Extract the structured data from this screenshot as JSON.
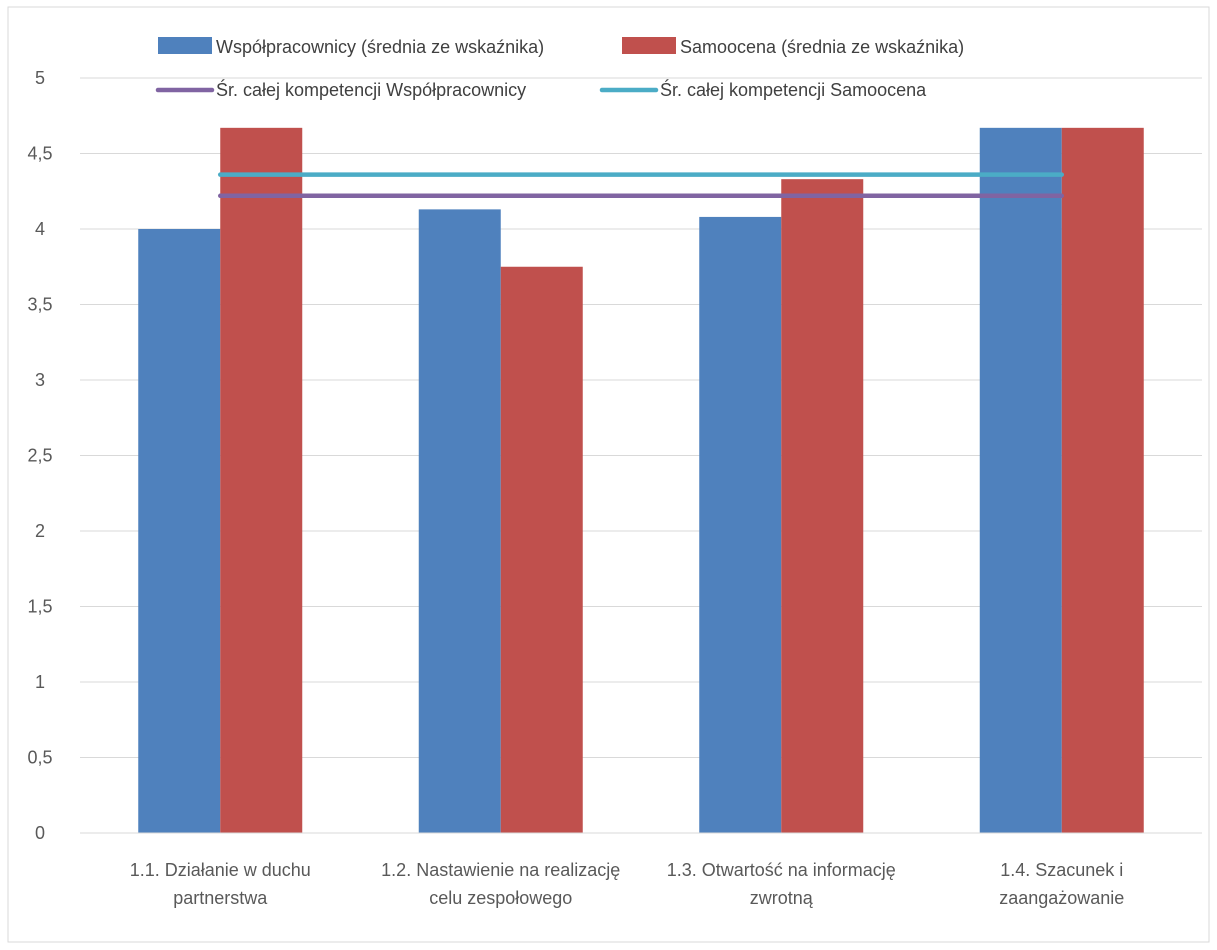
{
  "chart_data": {
    "type": "bar",
    "categories": [
      [
        "1.1. Działanie w duchu",
        "partnerstwa"
      ],
      [
        "1.2. Nastawienie na realizację",
        "celu zespołowego"
      ],
      [
        "1.3. Otwartość na informację",
        "zwrotną"
      ],
      [
        "1.4. Szacunek i",
        "zaangażowanie"
      ]
    ],
    "series": [
      {
        "name": "Współpracownicy (średnia ze wskaźnika)",
        "values": [
          4.0,
          4.13,
          4.08,
          4.67
        ],
        "color": "#4f81bd"
      },
      {
        "name": "Samoocena (średnia ze wskaźnika)",
        "values": [
          4.67,
          3.75,
          4.33,
          4.67
        ],
        "color": "#c0504d"
      }
    ],
    "reference_lines": [
      {
        "name": "Śr. całej kompetencji Współpracownicy",
        "value": 4.22,
        "color": "#8064a2"
      },
      {
        "name": "Śr. całej kompetencji Samoocena",
        "value": 4.36,
        "color": "#4bacc6"
      }
    ],
    "ylim": [
      0,
      5
    ],
    "yticks": [
      "0",
      "0,5",
      "1",
      "1,5",
      "2",
      "2,5",
      "3",
      "3,5",
      "4",
      "4,5",
      "5"
    ],
    "grid": true,
    "legend_position": "top"
  }
}
